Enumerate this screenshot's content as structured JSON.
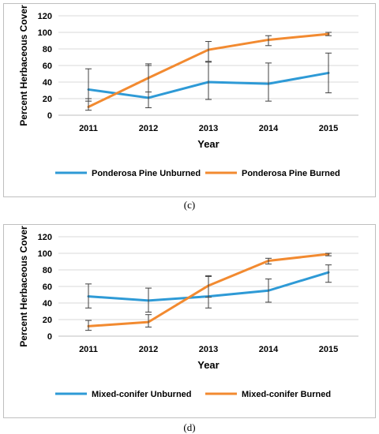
{
  "chart_data": [
    {
      "type": "line",
      "caption": "(c)",
      "title": "",
      "xlabel": "Year",
      "ylabel": "Percent Herbaceous Cover",
      "categories": [
        "2011",
        "2012",
        "2013",
        "2014",
        "2015"
      ],
      "ylim": [
        0,
        120
      ],
      "yticks": [
        "0",
        "20",
        "40",
        "60",
        "80",
        "100",
        "120"
      ],
      "grid": true,
      "legend": "bottom",
      "series": [
        {
          "name": "Ponderosa Pine Unburned",
          "color": "#2e9ad6",
          "values": [
            31,
            21,
            40,
            38,
            51
          ],
          "err_low": [
            17,
            9,
            19,
            17,
            27
          ],
          "err_high": [
            56,
            62,
            64,
            63,
            75
          ]
        },
        {
          "name": "Ponderosa Pine Burned",
          "color": "#f28a30",
          "values": [
            10,
            45,
            79,
            91,
            98
          ],
          "err_low": [
            6,
            28,
            65,
            84,
            96
          ],
          "err_high": [
            20,
            60,
            89,
            96,
            100
          ]
        }
      ]
    },
    {
      "type": "line",
      "caption": "(d)",
      "title": "",
      "xlabel": "Year",
      "ylabel": "Percent Herbaceous Cover",
      "categories": [
        "2011",
        "2012",
        "2013",
        "2014",
        "2015"
      ],
      "ylim": [
        0,
        120
      ],
      "yticks": [
        "0",
        "20",
        "40",
        "60",
        "80",
        "100",
        "120"
      ],
      "grid": true,
      "legend": "bottom",
      "series": [
        {
          "name": "Mixed-conifer Unburned",
          "color": "#2e9ad6",
          "values": [
            48,
            43,
            48,
            55,
            77
          ],
          "err_low": [
            34,
            29,
            34,
            41,
            65
          ],
          "err_high": [
            63,
            58,
            73,
            69,
            86
          ]
        },
        {
          "name": "Mixed-conifer Burned",
          "color": "#f28a30",
          "values": [
            12,
            17,
            61,
            91,
            99
          ],
          "err_low": [
            7,
            11,
            47,
            87,
            97
          ],
          "err_high": [
            19,
            26,
            72,
            94,
            100
          ]
        }
      ]
    }
  ]
}
